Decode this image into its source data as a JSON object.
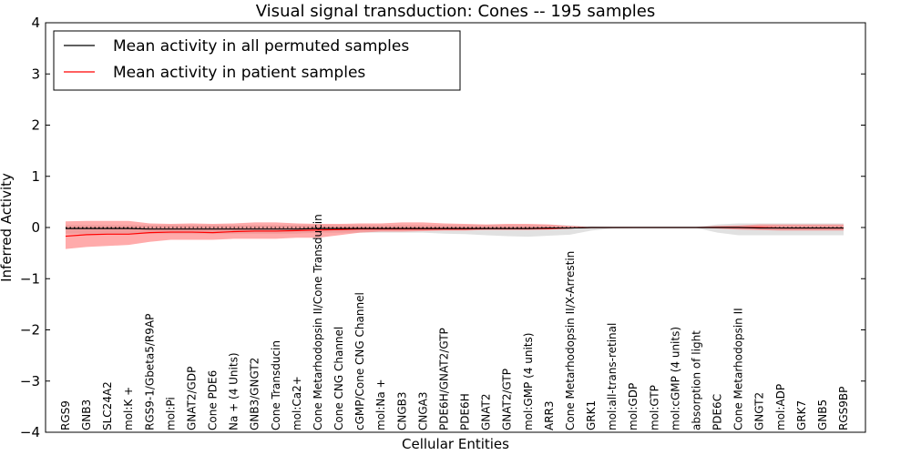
{
  "chart_data": {
    "type": "line",
    "title": "Visual signal transduction: Cones -- 195 samples",
    "xlabel": "Cellular Entities",
    "ylabel": "Inferred Activity",
    "ylim": [
      -4,
      4
    ],
    "yticks": [
      -4,
      -3,
      -2,
      -1,
      0,
      1,
      2,
      3,
      4
    ],
    "ytick_labels": [
      "−4",
      "−3",
      "−2",
      "−1",
      "0",
      "1",
      "2",
      "3",
      "4"
    ],
    "grid": false,
    "legend_position": "top-left",
    "categories": [
      "RGS9",
      "GNB3",
      "SLC24A2",
      "mol:K +",
      "RGS9-1/Gbeta5/R9AP",
      "mol:Pi",
      "GNAT2/GDP",
      "Cone PDE6",
      "Na + (4 Units)",
      "GNB3/GNGT2",
      "Cone Transducin",
      "mol:Ca2+",
      "Cone Metarhodopsin II/Cone Transducin",
      "Cone CNG Channel",
      "cGMP/Cone CNG Channel",
      "mol:Na +",
      "CNGB3",
      "CNGA3",
      "PDE6H/GNAT2/GTP",
      "PDE6H",
      "GNAT2",
      "GNAT2/GTP",
      "mol:GMP (4 units)",
      "ARR3",
      "Cone Metarhodopsin II/X-Arrestin",
      "GRK1",
      "mol:all-trans-retinal",
      "mol:GDP",
      "mol:GTP",
      "mol:cGMP (4 units)",
      "absorption of light",
      "PDE6C",
      "Cone Metarhodopsin II",
      "GNGT2",
      "mol:ADP",
      "GRK7",
      "GNB5",
      "RGS9BP"
    ],
    "series": [
      {
        "name": "Mean activity in all permuted samples",
        "color": "#000000",
        "values": [
          -0.02,
          -0.02,
          -0.02,
          -0.02,
          -0.03,
          -0.03,
          -0.03,
          -0.03,
          -0.03,
          -0.03,
          -0.03,
          -0.03,
          -0.02,
          -0.02,
          -0.02,
          -0.02,
          -0.02,
          -0.02,
          -0.02,
          -0.02,
          -0.02,
          -0.02,
          -0.02,
          -0.01,
          -0.01,
          0.0,
          0.0,
          0.0,
          0.0,
          0.0,
          0.0,
          0.0,
          0.0,
          -0.01,
          -0.01,
          -0.01,
          -0.01,
          -0.01
        ],
        "band_lower": [
          -0.12,
          -0.12,
          -0.12,
          -0.12,
          -0.12,
          -0.12,
          -0.12,
          -0.12,
          -0.12,
          -0.12,
          -0.12,
          -0.12,
          -0.1,
          -0.1,
          -0.1,
          -0.1,
          -0.1,
          -0.1,
          -0.12,
          -0.13,
          -0.15,
          -0.17,
          -0.18,
          -0.16,
          -0.14,
          -0.06,
          -0.02,
          -0.01,
          -0.01,
          -0.01,
          -0.01,
          -0.1,
          -0.15,
          -0.15,
          -0.15,
          -0.15,
          -0.15,
          -0.15
        ],
        "band_upper": [
          0.05,
          0.05,
          0.05,
          0.05,
          0.05,
          0.05,
          0.05,
          0.05,
          0.05,
          0.05,
          0.05,
          0.05,
          0.05,
          0.05,
          0.05,
          0.05,
          0.05,
          0.05,
          0.05,
          0.05,
          0.05,
          0.05,
          0.05,
          0.05,
          0.04,
          0.02,
          0.01,
          0.01,
          0.01,
          0.01,
          0.01,
          0.06,
          0.08,
          0.08,
          0.08,
          0.08,
          0.08,
          0.08
        ]
      },
      {
        "name": "Mean activity in patient samples",
        "color": "#ff0000",
        "values": [
          -0.17,
          -0.14,
          -0.13,
          -0.13,
          -0.1,
          -0.09,
          -0.09,
          -0.1,
          -0.08,
          -0.07,
          -0.07,
          -0.06,
          -0.05,
          -0.04,
          -0.03,
          -0.03,
          -0.03,
          -0.03,
          -0.03,
          -0.03,
          -0.02,
          -0.02,
          -0.02,
          -0.02,
          -0.01,
          0.0,
          0.0,
          0.0,
          0.0,
          0.0,
          0.0,
          0.0,
          0.0,
          0.0,
          -0.01,
          -0.01,
          -0.01,
          -0.01
        ],
        "band_lower": [
          -0.42,
          -0.38,
          -0.36,
          -0.34,
          -0.28,
          -0.24,
          -0.24,
          -0.24,
          -0.22,
          -0.22,
          -0.22,
          -0.2,
          -0.2,
          -0.15,
          -0.1,
          -0.08,
          -0.08,
          -0.07,
          -0.06,
          -0.06,
          -0.05,
          -0.05,
          -0.05,
          -0.04,
          -0.02,
          0.0,
          0.0,
          0.0,
          0.0,
          0.0,
          0.0,
          -0.02,
          -0.04,
          -0.05,
          -0.06,
          -0.06,
          -0.06,
          -0.06
        ],
        "band_upper": [
          0.12,
          0.13,
          0.13,
          0.13,
          0.08,
          0.07,
          0.08,
          0.07,
          0.08,
          0.1,
          0.1,
          0.08,
          0.07,
          0.07,
          0.08,
          0.08,
          0.1,
          0.1,
          0.08,
          0.07,
          0.06,
          0.07,
          0.07,
          0.06,
          0.03,
          0.01,
          0.0,
          0.0,
          0.0,
          0.0,
          0.01,
          0.03,
          0.04,
          0.06,
          0.06,
          0.06,
          0.06,
          0.06
        ]
      }
    ],
    "baseline": {
      "y": 0,
      "style": "dotted"
    }
  }
}
